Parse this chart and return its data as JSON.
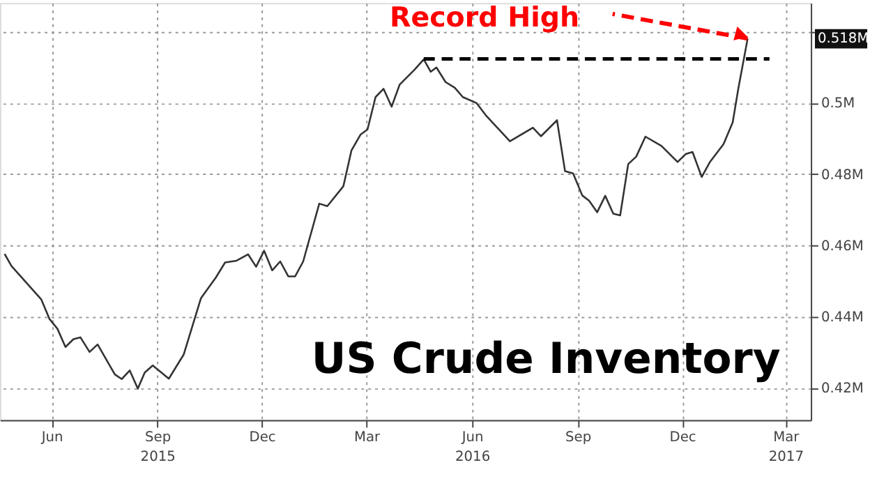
{
  "chart_data": {
    "type": "line",
    "title": "US Crude Inventory",
    "xlim": [
      "2015-05-01",
      "2017-04-06"
    ],
    "xticks": [
      {
        "value": "2015-06-15",
        "label": "Jun"
      },
      {
        "value": "2015-09-15",
        "label": "Sep 2015"
      },
      {
        "value": "2015-12-15",
        "label": "Dec"
      },
      {
        "value": "2016-03-15",
        "label": "Mar"
      },
      {
        "value": "2016-06-15",
        "label": "Jun 2016"
      },
      {
        "value": "2016-09-15",
        "label": "Sep"
      },
      {
        "value": "2016-12-15",
        "label": "Dec"
      },
      {
        "value": "2017-03-15",
        "label": "Mar 2017"
      }
    ],
    "ylim": [
      0.411,
      0.528
    ],
    "yticks": [
      {
        "value": 0.42,
        "label": "0.42M"
      },
      {
        "value": 0.44,
        "label": "0.44M"
      },
      {
        "value": 0.46,
        "label": "0.46M"
      },
      {
        "value": 0.48,
        "label": "0.48M"
      },
      {
        "value": 0.5,
        "label": "0.5M"
      },
      {
        "value": 0.52,
        "label": null
      }
    ],
    "grid": true,
    "legend": false,
    "annotations": [
      {
        "text": "Record High",
        "x": "2017-02-10",
        "y": 0.518
      },
      "0.518M"
    ],
    "series": [
      {
        "color": "#333333",
        "line_style": "solid",
        "x": [
          "2015-05-05",
          "2015-05-11",
          "2015-06-06",
          "2015-06-13",
          "2015-06-20",
          "2015-06-27",
          "2015-07-04",
          "2015-07-10",
          "2015-07-18",
          "2015-07-25",
          "2015-08-09",
          "2015-08-15",
          "2015-08-22",
          "2015-08-29",
          "2015-09-04",
          "2015-09-11",
          "2015-09-25",
          "2015-10-08",
          "2015-10-23",
          "2015-11-05",
          "2015-11-13",
          "2015-11-23",
          "2015-12-03",
          "2015-12-10",
          "2015-12-17",
          "2015-12-24",
          "2015-12-31",
          "2016-01-07",
          "2016-01-13",
          "2016-01-20",
          "2016-02-03",
          "2016-02-10",
          "2016-02-24",
          "2016-03-02",
          "2016-03-10",
          "2016-03-16",
          "2016-03-23",
          "2016-03-30",
          "2016-04-06",
          "2016-04-13",
          "2016-04-26",
          "2016-05-04",
          "2016-05-10",
          "2016-05-15",
          "2016-05-23",
          "2016-05-31",
          "2016-06-07",
          "2016-06-19",
          "2016-06-27",
          "2016-07-18",
          "2016-08-07",
          "2016-08-14",
          "2016-08-28",
          "2016-09-04",
          "2016-09-11",
          "2016-09-19",
          "2016-09-25",
          "2016-10-02",
          "2016-10-09",
          "2016-10-16",
          "2016-10-22",
          "2016-10-29",
          "2016-11-05",
          "2016-11-13",
          "2016-11-27",
          "2016-12-11",
          "2016-12-18",
          "2016-12-24",
          "2017-01-01",
          "2017-01-08",
          "2017-01-20",
          "2017-01-28",
          "2017-02-02",
          "2017-02-10"
        ],
        "values": [
          0.4576,
          0.4542,
          0.4448,
          0.4394,
          0.4366,
          0.4315,
          0.4337,
          0.4342,
          0.4301,
          0.4322,
          0.4238,
          0.4225,
          0.4249,
          0.4198,
          0.4243,
          0.4263,
          0.4226,
          0.4294,
          0.4452,
          0.451,
          0.4552,
          0.4557,
          0.4575,
          0.454,
          0.4585,
          0.453,
          0.4555,
          0.4513,
          0.4513,
          0.4555,
          0.4717,
          0.471,
          0.4766,
          0.4866,
          0.4911,
          0.4925,
          0.5016,
          0.5039,
          0.4989,
          0.5051,
          0.5093,
          0.5122,
          0.5087,
          0.5099,
          0.5058,
          0.5042,
          0.5016,
          0.4999,
          0.4965,
          0.4892,
          0.493,
          0.4906,
          0.4951,
          0.4808,
          0.4802,
          0.474,
          0.4725,
          0.4693,
          0.4739,
          0.4689,
          0.4684,
          0.4828,
          0.4849,
          0.4905,
          0.4879,
          0.4834,
          0.4856,
          0.4862,
          0.4792,
          0.4833,
          0.4884,
          0.4945,
          0.5042,
          0.518
        ]
      },
      {
        "color": "#000000",
        "line_style": "dashed",
        "x": [
          "2016-05-04",
          "2017-03-01"
        ],
        "values": [
          0.5123,
          0.5123
        ]
      }
    ]
  }
}
